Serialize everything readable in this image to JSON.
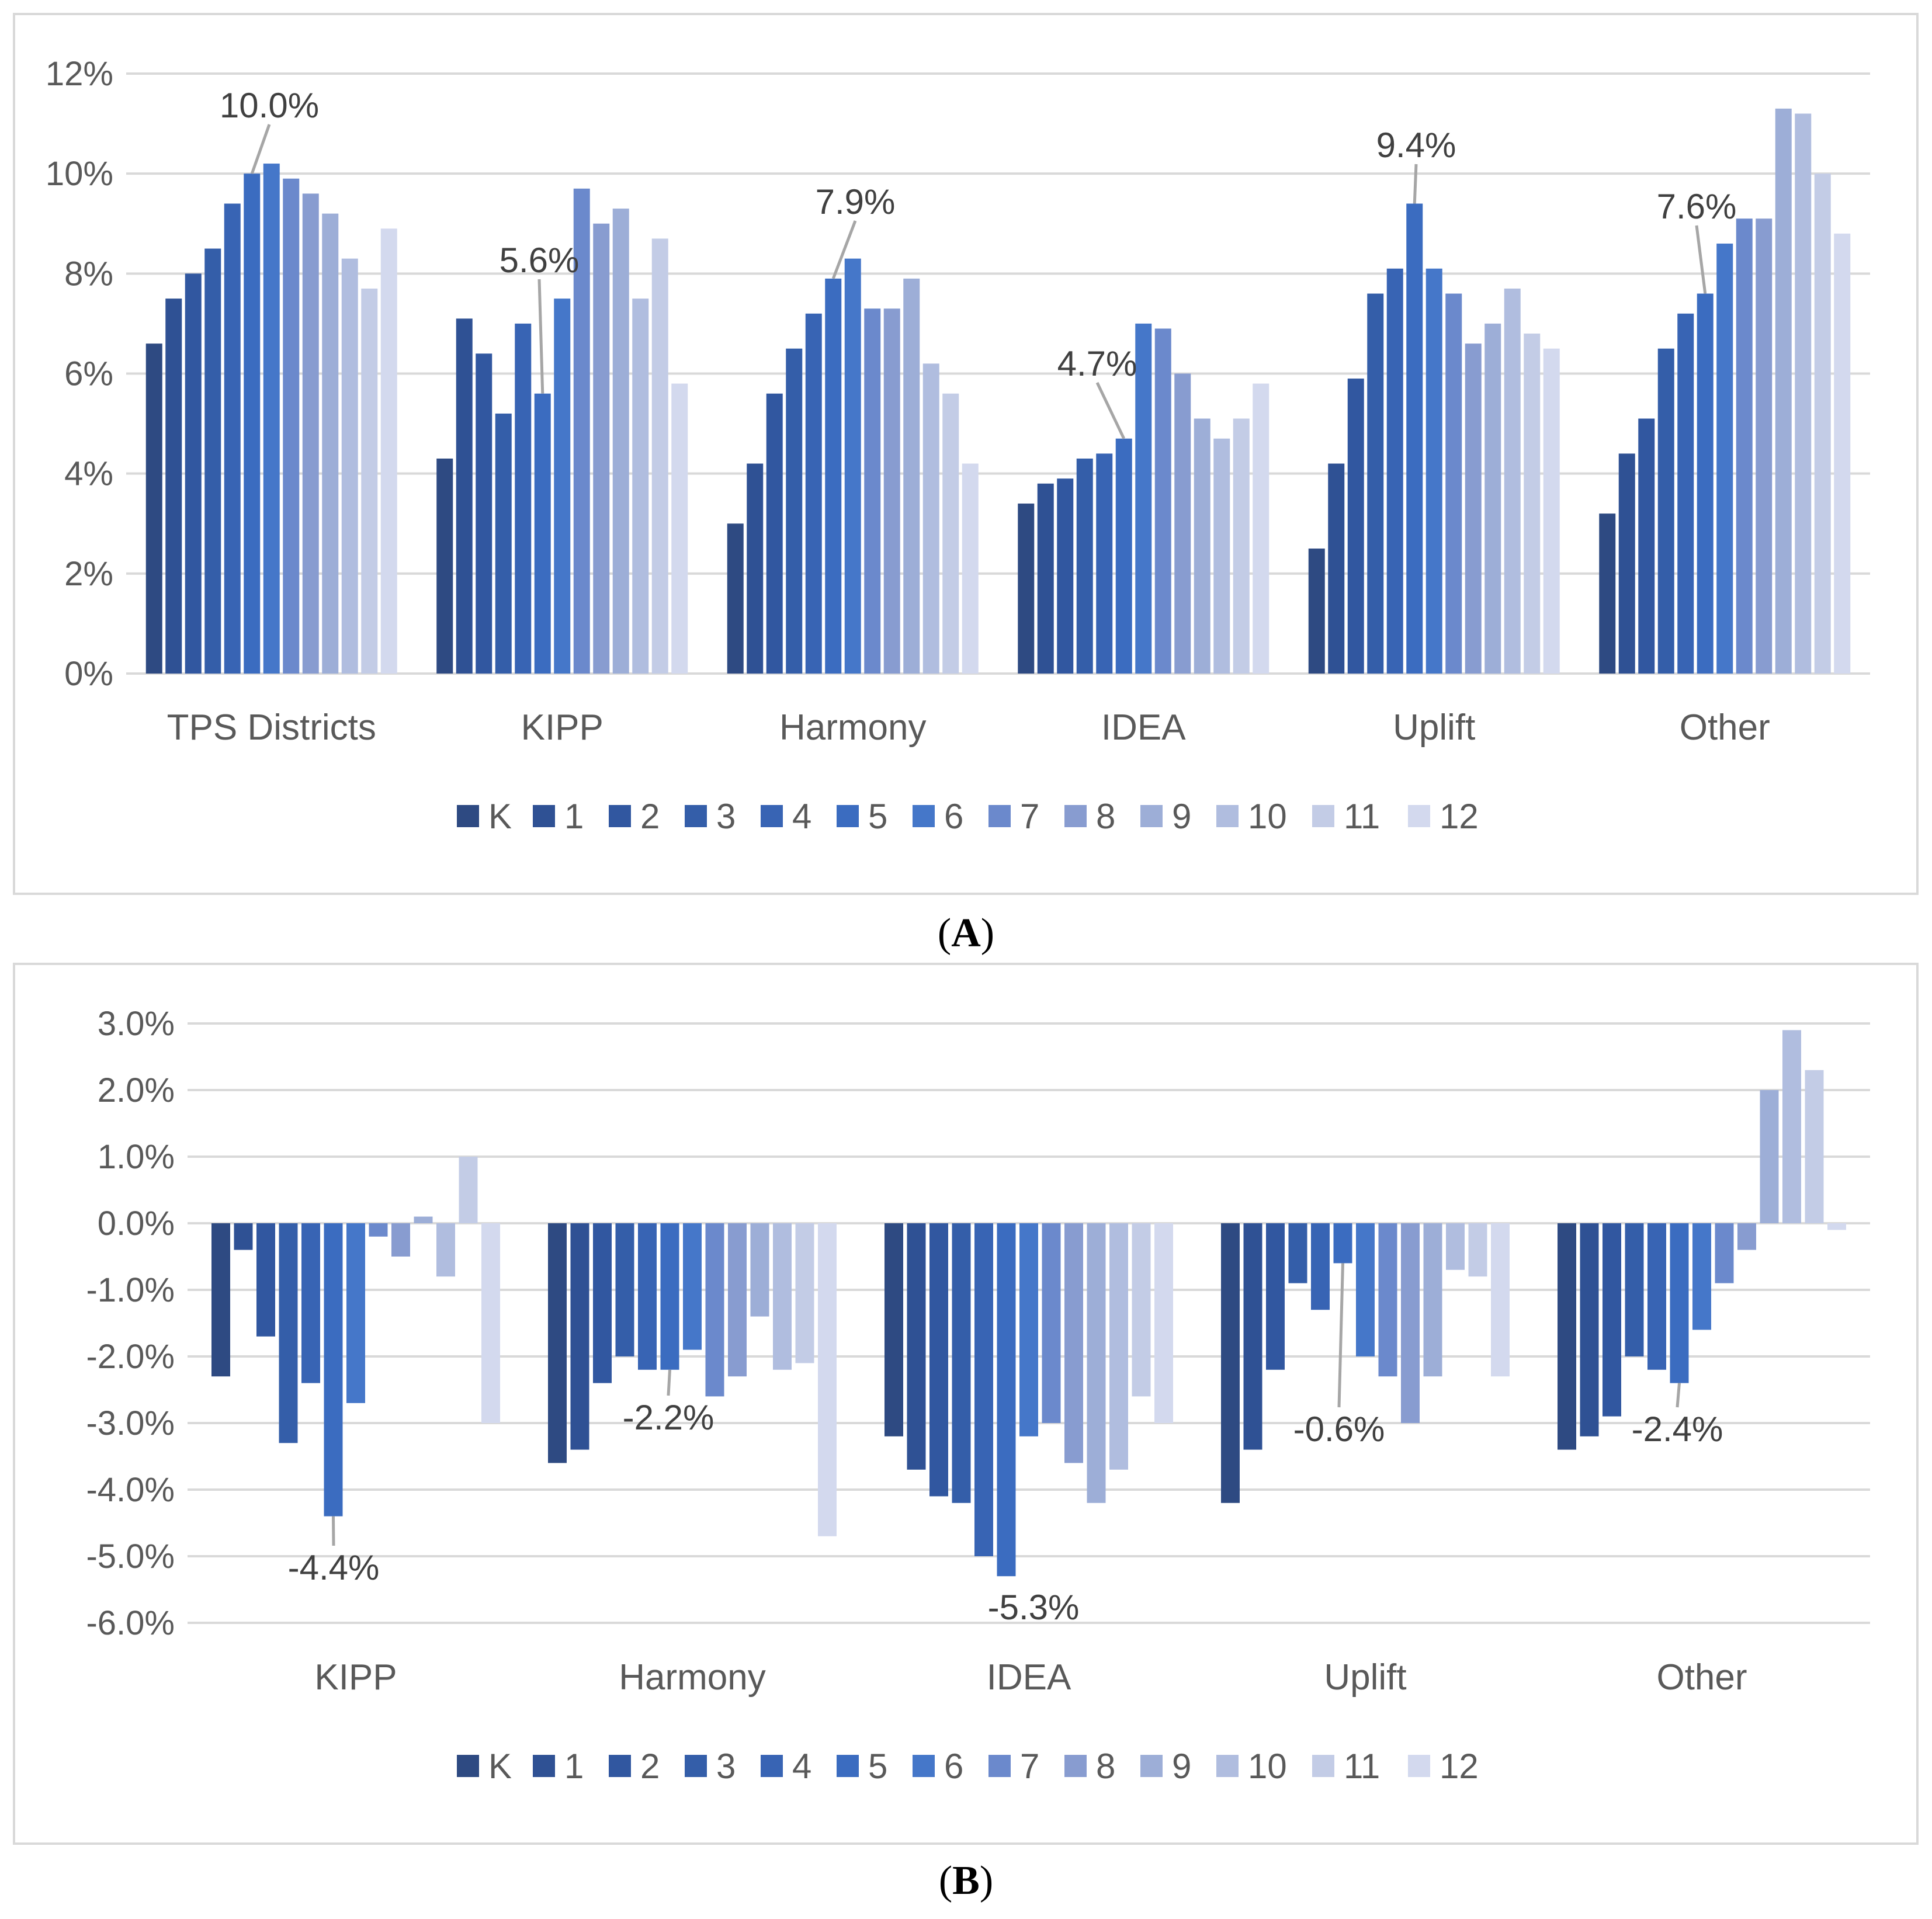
{
  "colors": {
    "series": [
      "#2e4a82",
      "#2f5194",
      "#3157a0",
      "#345ea9",
      "#3864b4",
      "#3b6cc0",
      "#4577c9",
      "#6b89cc",
      "#889cd0",
      "#9daed7",
      "#b0bddf",
      "#c3cce6",
      "#d3d9ee"
    ],
    "grid": "#d9d9d9",
    "leader": "#a6a6a6"
  },
  "legend_labels": [
    "K",
    "1",
    "2",
    "3",
    "4",
    "5",
    "6",
    "7",
    "8",
    "9",
    "10",
    "11",
    "12"
  ],
  "chart_data": [
    {
      "type": "bar",
      "id": "A",
      "caption_letter": "A",
      "categories": [
        "TPS Districts",
        "KIPP",
        "Harmony",
        "IDEA",
        "Uplift",
        "Other"
      ],
      "ylim": [
        0,
        12
      ],
      "yticks": [
        0,
        2,
        4,
        6,
        8,
        10,
        12
      ],
      "ytick_labels": [
        "0%",
        "2%",
        "4%",
        "6%",
        "8%",
        "10%",
        "12%"
      ],
      "grid": true,
      "legend_position": "bottom",
      "series_names": [
        "K",
        "1",
        "2",
        "3",
        "4",
        "5",
        "6",
        "7",
        "8",
        "9",
        "10",
        "11",
        "12"
      ],
      "values": [
        [
          6.6,
          7.5,
          8.0,
          8.5,
          9.4,
          10.0,
          10.2,
          9.9,
          9.6,
          9.2,
          8.3,
          7.7,
          8.9
        ],
        [
          4.3,
          7.1,
          6.4,
          5.2,
          7.0,
          5.6,
          7.5,
          9.7,
          9.0,
          9.3,
          7.5,
          8.7,
          5.8
        ],
        [
          3.0,
          4.2,
          5.6,
          6.5,
          7.2,
          7.9,
          8.3,
          7.3,
          7.3,
          7.9,
          6.2,
          5.6,
          4.2
        ],
        [
          3.4,
          3.8,
          3.9,
          4.3,
          4.4,
          4.7,
          7.0,
          6.9,
          6.0,
          5.1,
          4.7,
          5.1,
          5.8
        ],
        [
          2.5,
          4.2,
          5.9,
          7.6,
          8.1,
          9.4,
          8.1,
          7.6,
          6.6,
          7.0,
          7.7,
          6.8,
          6.5
        ],
        [
          3.2,
          4.4,
          5.1,
          6.5,
          7.2,
          7.6,
          8.6,
          9.1,
          9.1,
          11.3,
          11.2,
          10.0,
          8.8
        ]
      ],
      "annotations": [
        {
          "group": 0,
          "series": 5,
          "text": "10.0%"
        },
        {
          "group": 1,
          "series": 5,
          "text": "5.6%"
        },
        {
          "group": 2,
          "series": 5,
          "text": "7.9%"
        },
        {
          "group": 3,
          "series": 5,
          "text": "4.7%"
        },
        {
          "group": 4,
          "series": 5,
          "text": "9.4%"
        },
        {
          "group": 5,
          "series": 5,
          "text": "7.6%"
        }
      ]
    },
    {
      "type": "bar",
      "id": "B",
      "caption_letter": "B",
      "categories": [
        "KIPP",
        "Harmony",
        "IDEA",
        "Uplift",
        "Other"
      ],
      "ylim": [
        -6,
        3
      ],
      "yticks": [
        3,
        2,
        1,
        0,
        -1,
        -2,
        -3,
        -4,
        -5,
        -6
      ],
      "ytick_labels": [
        "3.0%",
        "2.0%",
        "1.0%",
        "0.0%",
        "-1.0%",
        "-2.0%",
        "-3.0%",
        "-4.0%",
        "-5.0%",
        "-6.0%"
      ],
      "grid": true,
      "legend_position": "bottom",
      "series_names": [
        "K",
        "1",
        "2",
        "3",
        "4",
        "5",
        "6",
        "7",
        "8",
        "9",
        "10",
        "11",
        "12"
      ],
      "values": [
        [
          -2.3,
          -0.4,
          -1.7,
          -3.3,
          -2.4,
          -4.4,
          -2.7,
          -0.2,
          -0.5,
          0.1,
          -0.8,
          1.0,
          -3.0
        ],
        [
          -3.6,
          -3.4,
          -2.4,
          -2.0,
          -2.2,
          -2.2,
          -1.9,
          -2.6,
          -2.3,
          -1.4,
          -2.2,
          -2.1,
          -4.7
        ],
        [
          -3.2,
          -3.7,
          -4.1,
          -4.2,
          -5.0,
          -5.3,
          -3.2,
          -3.0,
          -3.6,
          -4.2,
          -3.7,
          -2.6,
          -3.0
        ],
        [
          -4.2,
          -3.4,
          -2.2,
          -0.9,
          -1.3,
          -0.6,
          -2.0,
          -2.3,
          -3.0,
          -2.3,
          -0.7,
          -0.8,
          -2.3
        ],
        [
          -3.4,
          -3.2,
          -2.9,
          -2.0,
          -2.2,
          -2.4,
          -1.6,
          -0.9,
          -0.4,
          2.0,
          2.9,
          2.3,
          -0.1
        ]
      ],
      "annotations": [
        {
          "group": 0,
          "series": 5,
          "text": "-4.4%"
        },
        {
          "group": 1,
          "series": 5,
          "text": "-2.2%"
        },
        {
          "group": 2,
          "series": 5,
          "text": "-5.3%"
        },
        {
          "group": 3,
          "series": 5,
          "text": "-0.6%"
        },
        {
          "group": 4,
          "series": 5,
          "text": "-2.4%"
        }
      ]
    }
  ]
}
